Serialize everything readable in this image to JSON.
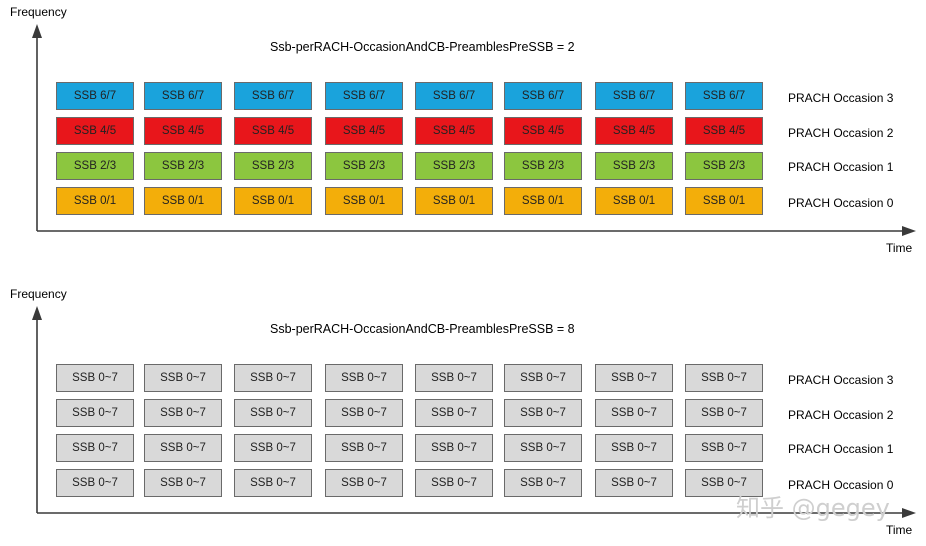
{
  "colors": {
    "ssb67": "#1aa3dc",
    "ssb45": "#e8161b",
    "ssb23": "#8cc63f",
    "ssb01": "#f3ae0a",
    "ssb07": "#d9d9d9"
  },
  "diagrams": [
    {
      "y_axis_label": "Frequency",
      "x_axis_label": "Time",
      "title": "Ssb-perRACH-OccasionAndCB-PreamblesPreSSB = 2",
      "rows": [
        {
          "occasion": "PRACH Occasion 3",
          "cell_label": "SSB 6/7",
          "color_key": "ssb67"
        },
        {
          "occasion": "PRACH Occasion 2",
          "cell_label": "SSB 4/5",
          "color_key": "ssb45"
        },
        {
          "occasion": "PRACH Occasion 1",
          "cell_label": "SSB 2/3",
          "color_key": "ssb23"
        },
        {
          "occasion": "PRACH Occasion 0",
          "cell_label": "SSB 0/1",
          "color_key": "ssb01"
        }
      ],
      "cells_per_row": 8
    },
    {
      "y_axis_label": "Frequency",
      "x_axis_label": "Time",
      "title": "Ssb-perRACH-OccasionAndCB-PreamblesPreSSB = 8",
      "rows": [
        {
          "occasion": "PRACH Occasion 3",
          "cell_label": "SSB 0~7",
          "color_key": "ssb07"
        },
        {
          "occasion": "PRACH Occasion 2",
          "cell_label": "SSB 0~7",
          "color_key": "ssb07"
        },
        {
          "occasion": "PRACH Occasion 1",
          "cell_label": "SSB 0~7",
          "color_key": "ssb07"
        },
        {
          "occasion": "PRACH Occasion 0",
          "cell_label": "SSB 0~7",
          "color_key": "ssb07"
        }
      ],
      "cells_per_row": 8
    }
  ],
  "watermark": "知乎 @gegey"
}
